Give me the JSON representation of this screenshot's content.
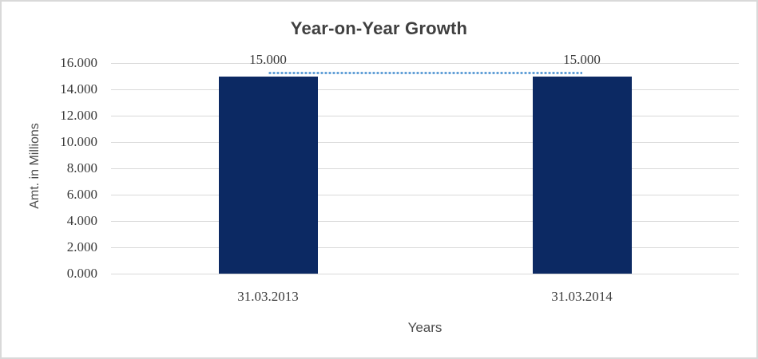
{
  "frame": {
    "background": "#ffffff",
    "border_color": "#d9d9d9"
  },
  "chart_data": {
    "type": "bar",
    "title": "Year-on-Year Growth",
    "xlabel": "Years",
    "ylabel": "Amt. in Millions",
    "categories": [
      "31.03.2013",
      "31.03.2014"
    ],
    "series": [
      {
        "type": "bar",
        "values": [
          15000,
          15000
        ],
        "color": "#0c2963"
      },
      {
        "type": "line",
        "values": [
          15000,
          15000
        ],
        "color": "#5b9bd5",
        "line_style": "dotted"
      }
    ],
    "value_labels": [
      "15.000",
      "15.000"
    ],
    "ylim": [
      0,
      16000
    ],
    "ytick_values": [
      0,
      2000,
      4000,
      6000,
      8000,
      10000,
      12000,
      14000,
      16000
    ],
    "ytick_labels": [
      "0.000",
      "2.000",
      "4.000",
      "6.000",
      "8.000",
      "10.000",
      "12.000",
      "14.000",
      "16.000"
    ],
    "grid": "horizontal",
    "gridline_color": "#d9d9d9",
    "legend": "none",
    "colors": {
      "title": "#404040",
      "tick_label": "#3a3a3a",
      "axis_title": "#4d4d4d"
    }
  }
}
